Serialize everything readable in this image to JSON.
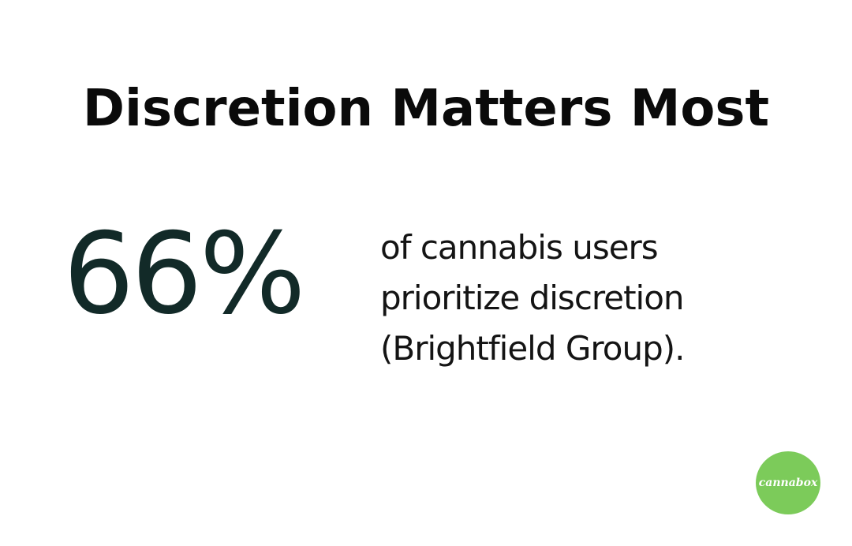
{
  "slide": {
    "title": "Discretion Matters Most",
    "stat": {
      "value": "66%",
      "color": "#122a28"
    },
    "description": {
      "lines": [
        "of cannabis users",
        "prioritize discretion",
        "(Brightfield Group)."
      ]
    },
    "logo": {
      "text": "cannabox",
      "background": "#7ccb5a"
    }
  }
}
